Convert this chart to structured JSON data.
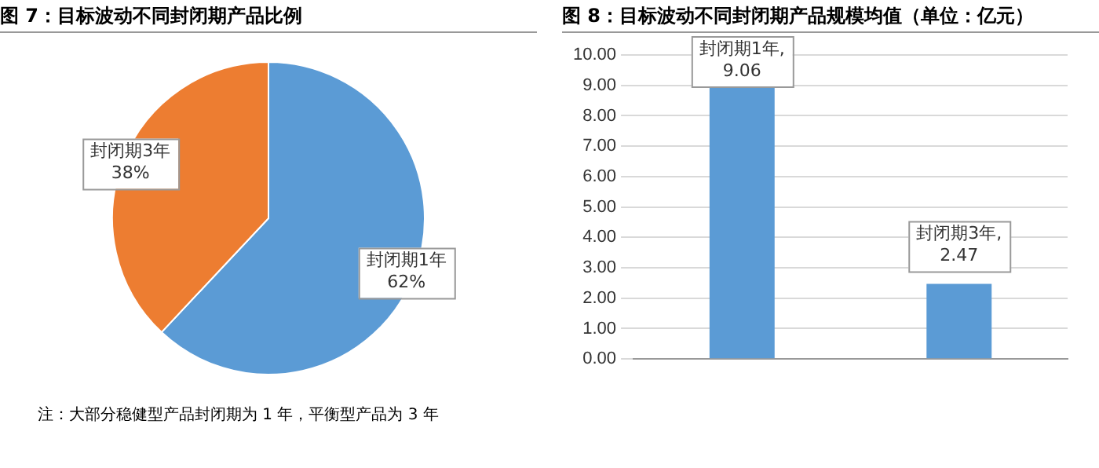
{
  "chart_data": [
    {
      "type": "pie",
      "title": "图 7：目标波动不同封闭期产品比例",
      "categories": [
        "封闭期1年",
        "封闭期3年"
      ],
      "values": [
        62,
        38
      ],
      "colors": [
        "#5b9bd5",
        "#ed7d31"
      ],
      "value_labels": [
        "62%",
        "38%"
      ],
      "legend": false,
      "annotations": [
        "注：大部分稳健型产品封闭期为 1 年，平衡型产品为 3 年"
      ]
    },
    {
      "type": "bar",
      "title": "图 8：目标波动不同封闭期产品规模均值（单位：亿元）",
      "categories": [
        null,
        null
      ],
      "values": [
        9.06,
        2.47
      ],
      "color": "#5b9bd5",
      "value_labels": [
        "封闭期1年,\n9.06",
        "封闭期3年,\n2.47"
      ],
      "ylim": [
        0,
        10
      ],
      "yticks": [
        {
          "value": 0,
          "label": "0.00"
        },
        {
          "value": 1,
          "label": "1.00"
        },
        {
          "value": 2,
          "label": "2.00"
        },
        {
          "value": 3,
          "label": "3.00"
        },
        {
          "value": 4,
          "label": "4.00"
        },
        {
          "value": 5,
          "label": "5.00"
        },
        {
          "value": 6,
          "label": "6.00"
        },
        {
          "value": 7,
          "label": "7.00"
        },
        {
          "value": 8,
          "label": "8.00"
        },
        {
          "value": 9,
          "label": "9.00"
        },
        {
          "value": 10,
          "label": "10.00"
        }
      ],
      "grid": "y",
      "legend": false
    }
  ]
}
